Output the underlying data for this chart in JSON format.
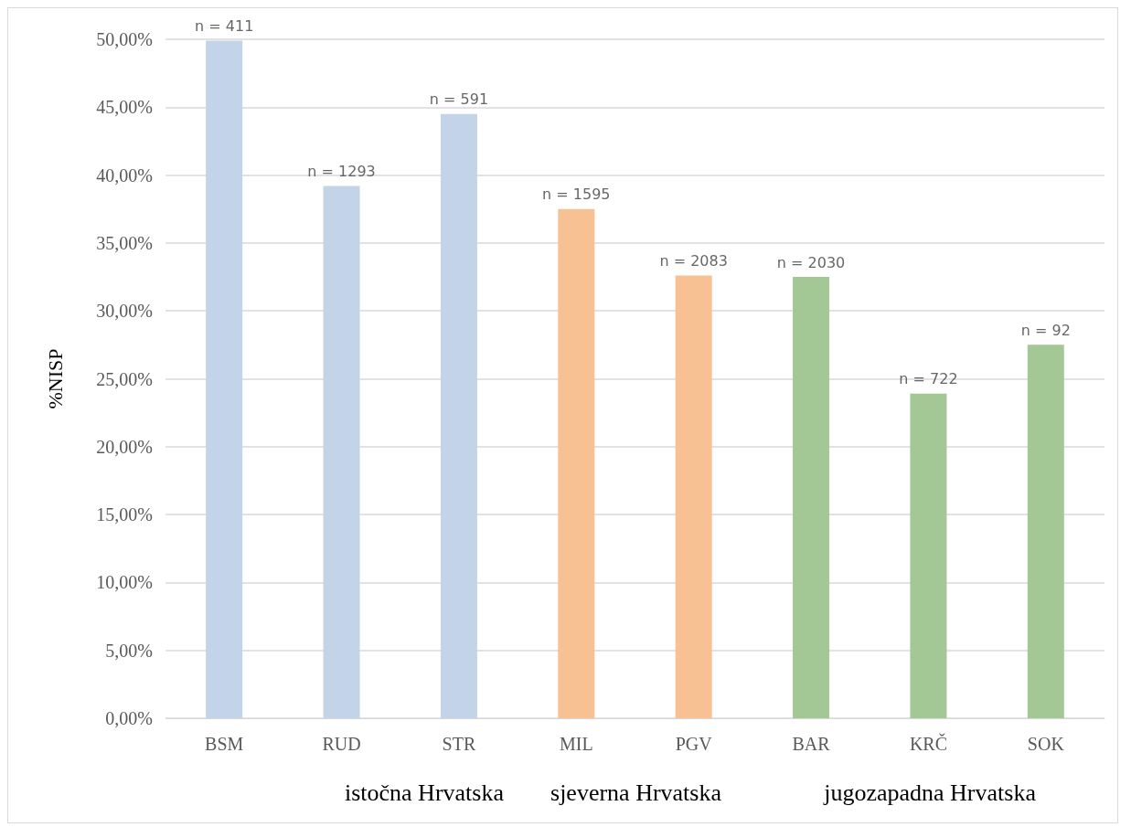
{
  "chart_data": {
    "type": "bar",
    "ylabel": "%NISP",
    "categories": [
      "BSM",
      "RUD",
      "STR",
      "MIL",
      "PGV",
      "BAR",
      "KRČ",
      "SOK"
    ],
    "values": [
      49.9,
      39.2,
      44.5,
      37.5,
      32.6,
      32.5,
      23.9,
      27.5
    ],
    "colors": [
      "#c3d3e8",
      "#c3d3e8",
      "#c3d3e8",
      "#f8c194",
      "#f8c194",
      "#a3c795",
      "#a3c795",
      "#a3c795"
    ],
    "ylim": [
      0,
      50
    ],
    "yticks": [
      {
        "value": 0,
        "label": "0,00%"
      },
      {
        "value": 5,
        "label": "5,00%"
      },
      {
        "value": 10,
        "label": "10,00%"
      },
      {
        "value": 15,
        "label": "15,00%"
      },
      {
        "value": 20,
        "label": "20,00%"
      },
      {
        "value": 25,
        "label": "25,00%"
      },
      {
        "value": 30,
        "label": "30,00%"
      },
      {
        "value": 35,
        "label": "35,00%"
      },
      {
        "value": 40,
        "label": "40,00%"
      },
      {
        "value": 45,
        "label": "45,00%"
      },
      {
        "value": 50,
        "label": "50,00%"
      }
    ],
    "grid": "y",
    "annotations": [
      {
        "text": "n = 411",
        "x": "BSM",
        "y": 49.9
      },
      {
        "text": "n = 1293",
        "x": "RUD",
        "y": 39.2
      },
      {
        "text": "n = 591",
        "x": "STR",
        "y": 44.5
      },
      {
        "text": "n = 1595",
        "x": "MIL",
        "y": 37.5
      },
      {
        "text": "n = 2083",
        "x": "PGV",
        "y": 32.6
      },
      {
        "text": "n = 2030",
        "x": "BAR",
        "y": 32.5
      },
      {
        "text": "n = 722",
        "x": "KRČ",
        "y": 23.9
      },
      {
        "text": "n = 92",
        "x": "SOK",
        "y": 27.5
      },
      "istočna Hrvatska",
      "sjeverna Hrvatska",
      "jugozapadna Hrvatska"
    ]
  }
}
